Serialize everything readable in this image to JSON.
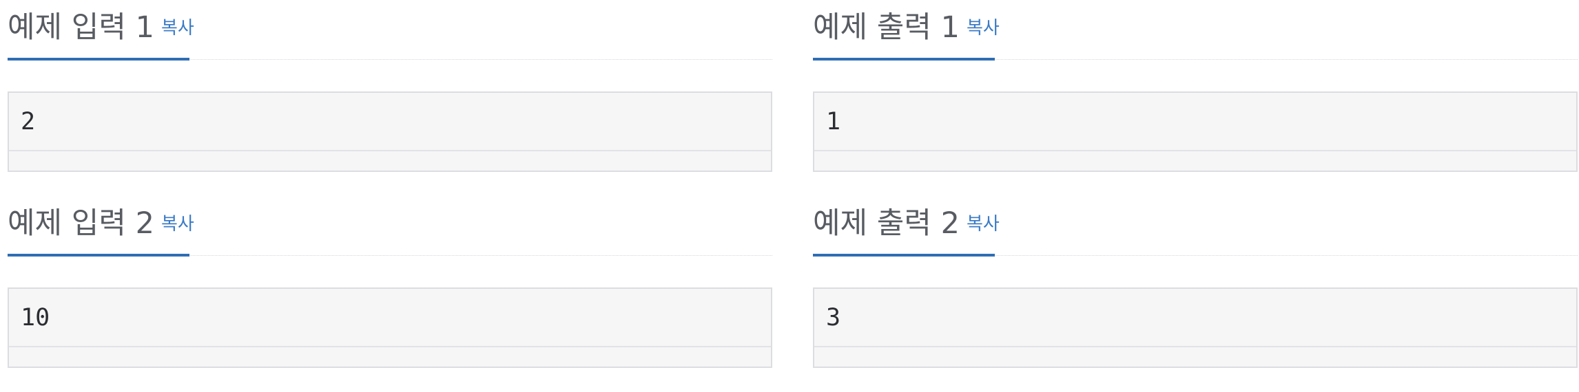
{
  "samples": [
    {
      "title": "예제 입력 1",
      "copy_label": "복사",
      "content": "2"
    },
    {
      "title": "예제 출력 1",
      "copy_label": "복사",
      "content": "1"
    },
    {
      "title": "예제 입력 2",
      "copy_label": "복사",
      "content": "10"
    },
    {
      "title": "예제 출력 2",
      "copy_label": "복사",
      "content": "3"
    }
  ],
  "colors": {
    "accent": "#2f6db5",
    "link": "#3b7bc5",
    "heading": "#585c62",
    "box_bg": "#f6f6f7",
    "box_border": "#dcdde0"
  }
}
